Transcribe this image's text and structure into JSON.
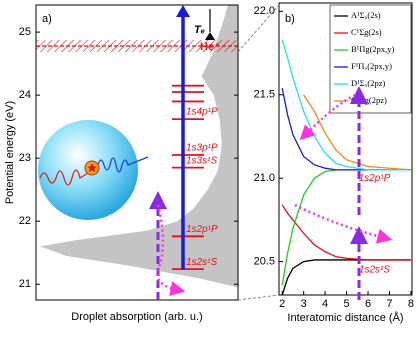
{
  "chart_data": [
    {
      "type": "area",
      "label": "a)",
      "ylabel": "Potential energy (eV)",
      "xlabel": "Droplet absorption (arb. u.)",
      "ylim": [
        20.75,
        25.43
      ],
      "yticks": [
        21,
        22,
        23,
        24,
        25
      ],
      "xlim": [
        1,
        0
      ],
      "color": "#c4c4c4",
      "energies": [
        20.95,
        21.1,
        21.3,
        21.45,
        21.6,
        21.7,
        21.85,
        22.0,
        22.2,
        22.5,
        22.8,
        23.2,
        23.6,
        24.0,
        24.3,
        24.5,
        24.7,
        24.9,
        25.2,
        25.43
      ],
      "values": [
        0.0,
        0.2,
        0.55,
        0.85,
        0.98,
        0.8,
        0.45,
        0.3,
        0.22,
        0.15,
        0.1,
        0.08,
        0.09,
        0.12,
        0.18,
        0.15,
        0.12,
        0.1,
        0.07,
        0.05
      ],
      "level_color": "#e8101a",
      "levels": [
        {
          "value": 21.24,
          "label": "1s2s¹S"
        },
        {
          "value": 21.76,
          "label": "1s2p¹P"
        },
        {
          "value": 22.85,
          "label": "1s3s¹S"
        },
        {
          "value": 23.05,
          "label": "1s3p¹P"
        },
        {
          "value": 23.62,
          "label": "1s4p¹P"
        },
        23.9,
        24.05,
        24.15
      ],
      "ion": {
        "value": 24.78,
        "label": "He⁺"
      },
      "arrow_label": "Tₑ",
      "arrow_color": "#1a1adc"
    },
    {
      "type": "line",
      "label": "b)",
      "xlabel": "Interatomic distance (Å)",
      "xlim": [
        1.85,
        8.05
      ],
      "xticks": [
        2,
        3,
        4,
        5,
        6,
        7,
        8
      ],
      "ylim": [
        20.3,
        22.05
      ],
      "yticks": [
        {
          "value": 20.5,
          "label": "20.5"
        },
        {
          "value": 21.0,
          "label": "21.0"
        },
        {
          "value": 21.5,
          "label": "21.5"
        },
        {
          "value": 22.0,
          "label": "22.0"
        }
      ],
      "x": [
        2,
        2.25,
        2.5,
        3,
        3.5,
        4,
        4.5,
        5,
        6,
        8
      ],
      "series": [
        {
          "name": "A¹Σᵤ(2s)",
          "color": "#000000",
          "values": [
            20.3,
            20.4,
            20.46,
            20.5,
            20.51,
            20.51,
            20.51,
            20.51,
            20.51,
            20.51
          ]
        },
        {
          "name": "C¹Σg(2s)",
          "color": "#e8101a",
          "values": [
            20.84,
            20.79,
            20.75,
            20.67,
            20.6,
            20.56,
            20.53,
            20.52,
            20.51,
            20.51
          ]
        },
        {
          "name": "B¹Πg(2px,y)",
          "color": "#22cc22",
          "values": [
            20.36,
            20.55,
            20.7,
            20.9,
            21.0,
            21.04,
            21.05,
            21.05,
            21.05,
            21.05
          ]
        },
        {
          "name": "F¹Πᵤ(2px,y)",
          "color": "#1a1adc",
          "values": [
            21.54,
            21.38,
            21.26,
            21.13,
            21.08,
            21.06,
            21.05,
            21.05,
            21.05,
            21.05
          ]
        },
        {
          "name": "D¹Σᵤ(2pz)",
          "color": "#22e0f0",
          "values": [
            21.83,
            21.72,
            21.6,
            21.4,
            21.25,
            21.15,
            21.09,
            21.07,
            21.05,
            21.05
          ]
        },
        {
          "name": "G¹Σg(2pz)",
          "color": "#f08a1c",
          "values": [
            null,
            null,
            null,
            21.5,
            21.4,
            21.27,
            21.17,
            21.11,
            21.07,
            21.05
          ]
        }
      ],
      "annotations": [
        {
          "text": "1s2p¹P",
          "x": 6.3,
          "y": 21.0
        },
        {
          "text": "1s2s¹S",
          "x": 6.3,
          "y": 20.45
        }
      ]
    }
  ]
}
